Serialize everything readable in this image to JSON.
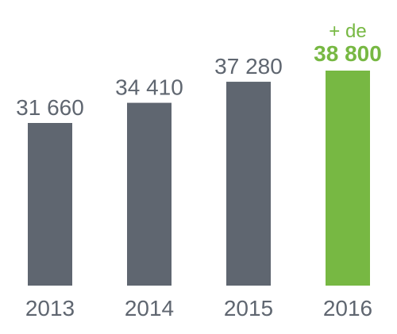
{
  "chart_data": {
    "type": "bar",
    "categories": [
      "2013",
      "2014",
      "2015",
      "2016"
    ],
    "values": [
      31660,
      34410,
      37280,
      38800
    ],
    "value_labels": [
      "31 660",
      "34 410",
      "37 280",
      "38 800"
    ],
    "highlight_prefix": "+ de",
    "highlight_index": 3,
    "colors": {
      "bar": "#5f6670",
      "highlight": "#77b843",
      "text": "#5f6670"
    },
    "grid": false,
    "legend": "none"
  }
}
